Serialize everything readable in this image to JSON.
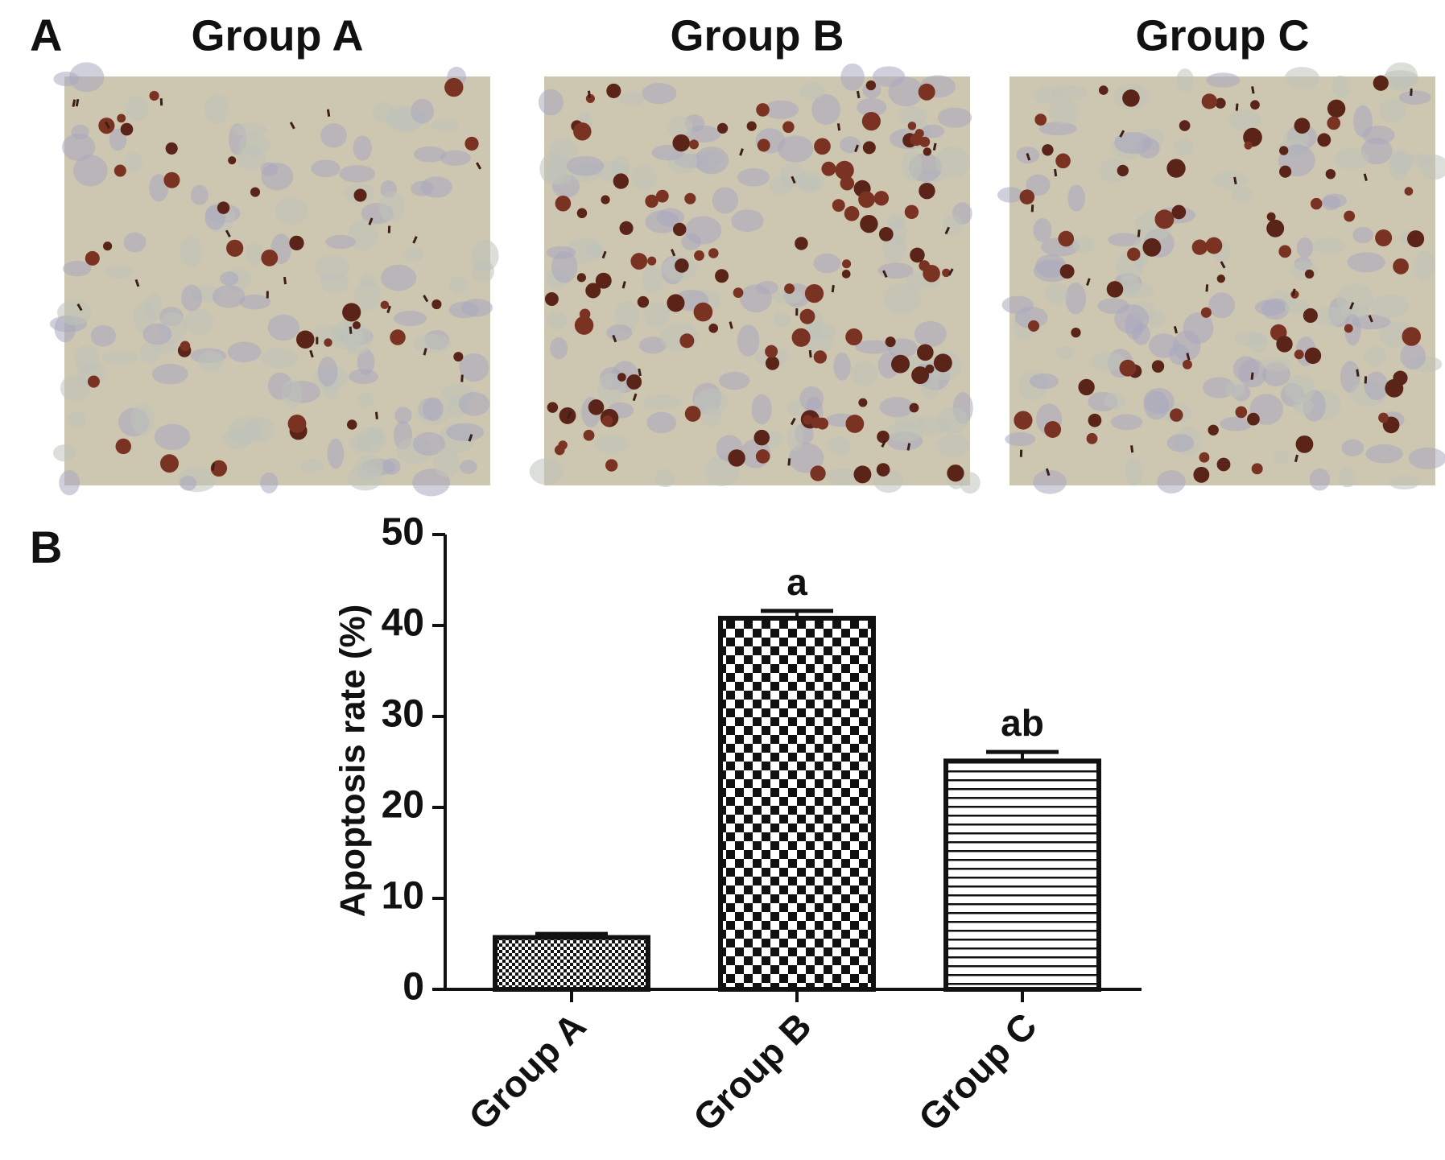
{
  "panel_labels": [
    "A",
    "B"
  ],
  "images": [
    {
      "title": "Group A"
    },
    {
      "title": "Group B"
    },
    {
      "title": "Group C"
    }
  ],
  "chart_data": {
    "type": "bar",
    "y_label": "Apoptosis rate (%)",
    "categories": [
      "Group A",
      "Group B",
      "Group C"
    ],
    "values": [
      5.7,
      40.8,
      25.1
    ],
    "errors": [
      0.4,
      0.8,
      1.0
    ],
    "annotations": [
      null,
      "a",
      "ab"
    ],
    "color": "#111111",
    "ylim": [
      0,
      50
    ],
    "yticks": [
      0,
      10,
      20,
      30,
      40,
      50
    ],
    "grid": false
  }
}
